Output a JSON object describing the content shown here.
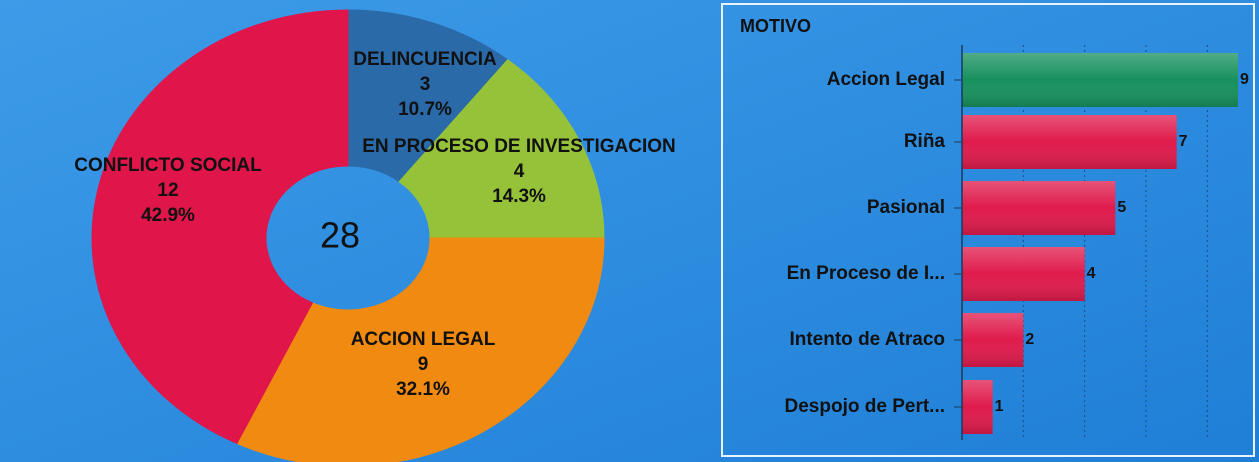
{
  "chart_data": [
    {
      "type": "donut",
      "categories": [
        "DELINCUENCIA",
        "EN PROCESO DE INVESTIGACION",
        "ACCION LEGAL",
        "CONFLICTO SOCIAL"
      ],
      "values": [
        3,
        4,
        9,
        12
      ],
      "percent_labels": [
        "10.7%",
        "14.3%",
        "32.1%",
        "42.9%"
      ],
      "colors": [
        "#2a6aa8",
        "#96c23a",
        "#f08a10",
        "#e0154a"
      ],
      "total": 28
    },
    {
      "type": "barh",
      "title": "MOTIVO",
      "categories": [
        "Accion Legal",
        "Riña",
        "Pasional",
        "En Proceso de I...",
        "Intento de Atraco",
        "Despojo de Pert..."
      ],
      "values": [
        9,
        7,
        5,
        4,
        2,
        1
      ],
      "colors": [
        "#17905e",
        "#df1b4c",
        "#df1b4c",
        "#df1b4c",
        "#df1b4c",
        "#df1b4c"
      ],
      "xlim": [
        0,
        9
      ],
      "xticks": [
        0,
        2,
        4,
        6,
        8
      ],
      "grid": true
    }
  ]
}
